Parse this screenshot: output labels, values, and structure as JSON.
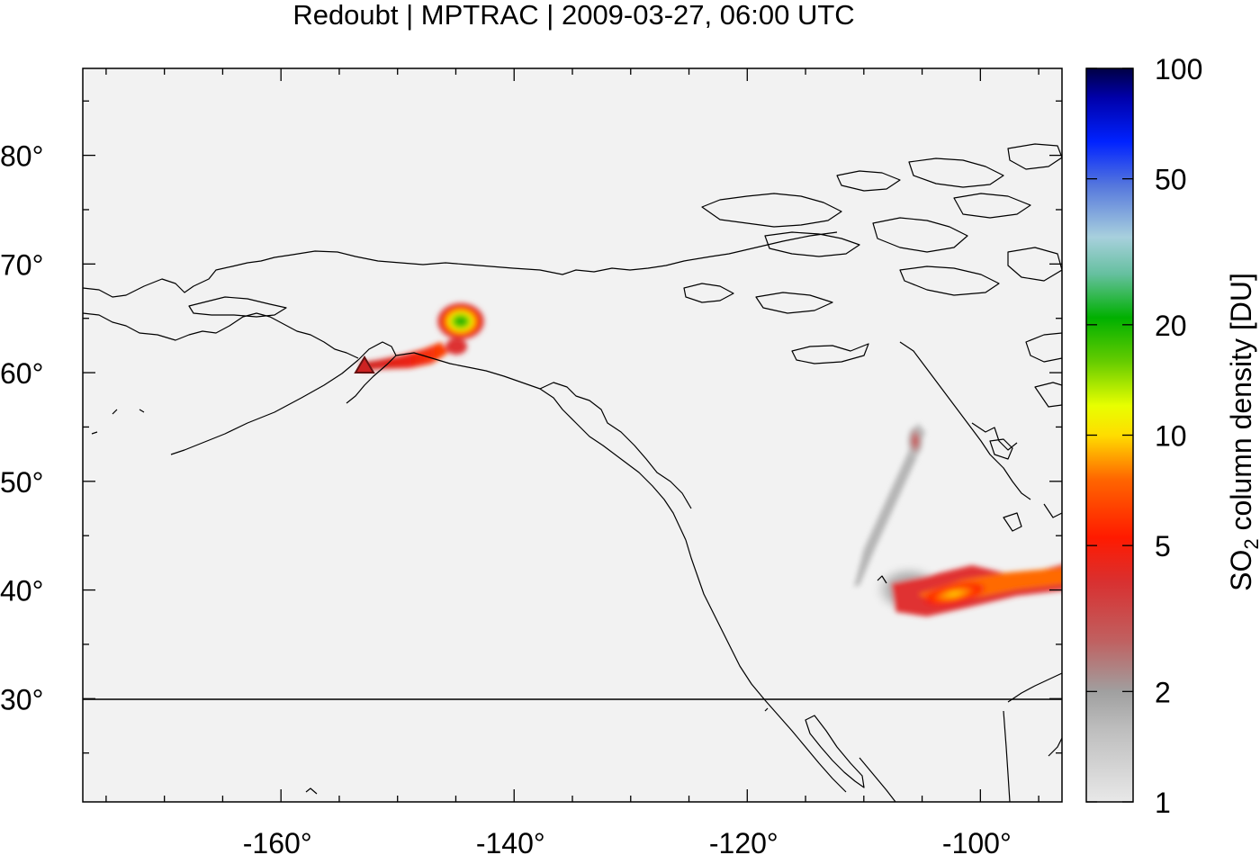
{
  "title": "Redoubt | MPTRAC | 2009-03-27, 06:00 UTC",
  "map": {
    "lon_range": [
      -177,
      -93
    ],
    "lat_range": [
      20.5,
      88
    ],
    "lon_ticks": [
      -160,
      -140,
      -120,
      -100
    ],
    "lon_tick_labels": [
      "-160°",
      "-140°",
      "-120°",
      "-100°"
    ],
    "lat_ticks": [
      30,
      40,
      50,
      60,
      70,
      80
    ],
    "lat_tick_labels": [
      "30°",
      "40°",
      "50°",
      "60°",
      "70°",
      "80°"
    ],
    "background_color": "#f2f2f2",
    "reference_latitude_line": 30
  },
  "colorbar": {
    "label": "SO2 column density [DU]",
    "label_main": "SO",
    "label_sub": "2",
    "label_rest": " column density [DU]",
    "scale": "log",
    "range": [
      1,
      100
    ],
    "ticks": [
      1,
      2,
      5,
      10,
      20,
      50,
      100
    ],
    "tick_labels": [
      "1",
      "2",
      "5",
      "10",
      "20",
      "50",
      "100"
    ],
    "colors": [
      "#e6e6e6",
      "#a0a0a0",
      "#cc4444",
      "#ff0000",
      "#ff7700",
      "#ffff00",
      "#00bb00",
      "#aad4dd",
      "#4466dd",
      "#0000ff",
      "#000044"
    ]
  },
  "volcano": {
    "name": "Redoubt",
    "lon": -152.7,
    "lat": 60.5,
    "marker": "triangle-icon"
  }
}
